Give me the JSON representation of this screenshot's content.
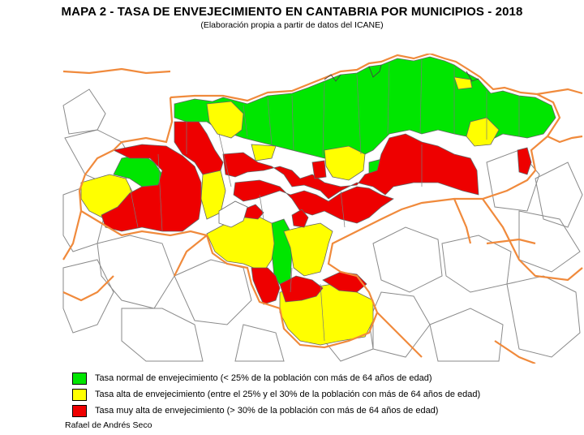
{
  "header": {
    "title": "MAPA 2 - TASA DE ENVEJECIMIENTO EN CANTABRIA POR MUNICIPIOS - 2018",
    "subtitle": "(Elaboración propia a partir de datos del ICANE)"
  },
  "colors": {
    "normal": "#00e600",
    "alta": "#ffff00",
    "muy_alta": "#ee0000",
    "province_border": "#f08a3c",
    "municipal_border": "#8a8a8a"
  },
  "legend": {
    "items": [
      {
        "key": "normal",
        "color": "#00e600",
        "label": "Tasa normal de envejecimiento (< 25% de la población con más de 64 años de edad)"
      },
      {
        "key": "alta",
        "color": "#ffff00",
        "label": "Tasa alta de envejecimiento (entre el 25% y el 30% de la población con más de 64 años de edad)"
      },
      {
        "key": "muy_alta",
        "color": "#ee0000",
        "label": "Tasa muy alta de envejecimiento (> 30% de la población con más de 64 años de edad)"
      }
    ]
  },
  "footer": {
    "author": "Rafael de Andrés Seco"
  }
}
